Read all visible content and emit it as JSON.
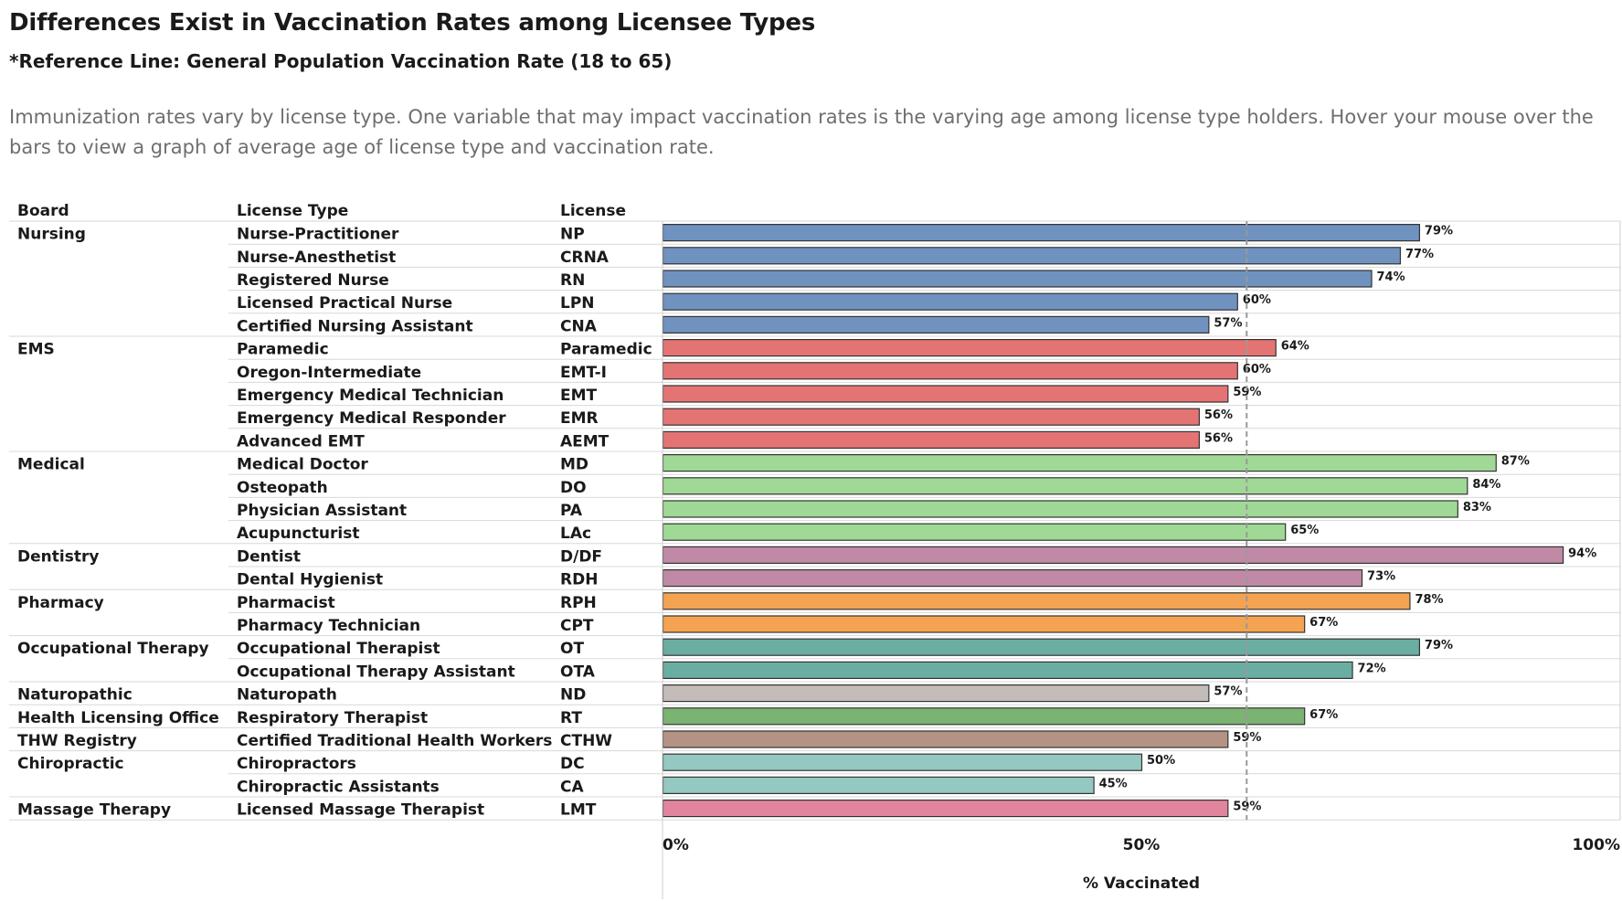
{
  "title": "Differences Exist in Vaccination Rates among Licensee Types",
  "subtitle": "*Reference Line: General Population Vaccination Rate (18 to 65)",
  "description": "Immunization rates vary by license type. One variable that may impact vaccination rates is the varying age among license type holders. Hover your mouse over the bars to view a graph of average age of license type and vaccination rate.",
  "table_headers": {
    "board": "Board",
    "license_type": "License Type",
    "license": "License"
  },
  "colors": {
    "Nursing": "#7092bf",
    "EMS": "#e47474",
    "Medical": "#a0d995",
    "Dentistry": "#c08aa6",
    "Pharmacy": "#f4a352",
    "Occupational Therapy": "#6aaea2",
    "Naturopathic": "#c3bcb8",
    "Health Licensing Office": "#7bb372",
    "THW Registry": "#b59384",
    "Chiropractic": "#94c8c0",
    "Massage Therapy": "#e1859f",
    "reference_line": "#999999"
  },
  "chart_data": {
    "type": "bar",
    "orientation": "horizontal",
    "reference_line": {
      "value": 0.61,
      "label": "General Population Vaccination Rate (18 to 65)"
    },
    "xlabel": "% Vaccinated",
    "xlim": [
      0,
      1
    ],
    "xticks": [
      "0%",
      "50%",
      "100%"
    ],
    "grid": false,
    "rows": [
      {
        "board": "Nursing",
        "license_type": "Nurse-Practitioner",
        "license": "NP",
        "value": 0.79,
        "label": "79%"
      },
      {
        "board": "",
        "license_type": "Nurse-Anesthetist",
        "license": "CRNA",
        "value": 0.77,
        "label": "77%"
      },
      {
        "board": "",
        "license_type": "Registered Nurse",
        "license": "RN",
        "value": 0.74,
        "label": "74%"
      },
      {
        "board": "",
        "license_type": "Licensed Practical Nurse",
        "license": "LPN",
        "value": 0.6,
        "label": "60%"
      },
      {
        "board": "",
        "license_type": "Certified Nursing Assistant",
        "license": "CNA",
        "value": 0.57,
        "label": "57%"
      },
      {
        "board": "EMS",
        "license_type": "Paramedic",
        "license": "Paramedic",
        "value": 0.64,
        "label": "64%"
      },
      {
        "board": "",
        "license_type": "Oregon-Intermediate",
        "license": "EMT-I",
        "value": 0.6,
        "label": "60%"
      },
      {
        "board": "",
        "license_type": "Emergency Medical Technician",
        "license": "EMT",
        "value": 0.59,
        "label": "59%"
      },
      {
        "board": "",
        "license_type": "Emergency Medical Responder",
        "license": "EMR",
        "value": 0.56,
        "label": "56%"
      },
      {
        "board": "",
        "license_type": "Advanced EMT",
        "license": "AEMT",
        "value": 0.56,
        "label": "56%"
      },
      {
        "board": "Medical",
        "license_type": "Medical Doctor",
        "license": "MD",
        "value": 0.87,
        "label": "87%"
      },
      {
        "board": "",
        "license_type": "Osteopath",
        "license": "DO",
        "value": 0.84,
        "label": "84%"
      },
      {
        "board": "",
        "license_type": "Physician Assistant",
        "license": "PA",
        "value": 0.83,
        "label": "83%"
      },
      {
        "board": "",
        "license_type": "Acupuncturist",
        "license": "LAc",
        "value": 0.65,
        "label": "65%"
      },
      {
        "board": "Dentistry",
        "license_type": "Dentist",
        "license": "D/DF",
        "value": 0.94,
        "label": "94%"
      },
      {
        "board": "",
        "license_type": "Dental Hygienist",
        "license": "RDH",
        "value": 0.73,
        "label": "73%"
      },
      {
        "board": "Pharmacy",
        "license_type": "Pharmacist",
        "license": "RPH",
        "value": 0.78,
        "label": "78%"
      },
      {
        "board": "",
        "license_type": "Pharmacy Technician",
        "license": "CPT",
        "value": 0.67,
        "label": "67%"
      },
      {
        "board": "Occupational Therapy",
        "license_type": "Occupational Therapist",
        "license": "OT",
        "value": 0.79,
        "label": "79%"
      },
      {
        "board": "",
        "license_type": "Occupational Therapy Assistant",
        "license": "OTA",
        "value": 0.72,
        "label": "72%"
      },
      {
        "board": "Naturopathic",
        "license_type": "Naturopath",
        "license": "ND",
        "value": 0.57,
        "label": "57%"
      },
      {
        "board": "Health Licensing Office",
        "license_type": "Respiratory Therapist",
        "license": "RT",
        "value": 0.67,
        "label": "67%"
      },
      {
        "board": "THW Registry",
        "license_type": "Certified Traditional Health Workers",
        "license": "CTHW",
        "value": 0.59,
        "label": "59%"
      },
      {
        "board": "Chiropractic",
        "license_type": "Chiropractors",
        "license": "DC",
        "value": 0.5,
        "label": "50%"
      },
      {
        "board": "",
        "license_type": "Chiropractic Assistants",
        "license": "CA",
        "value": 0.45,
        "label": "45%"
      },
      {
        "board": "Massage Therapy",
        "license_type": "Licensed Massage Therapist",
        "license": "LMT",
        "value": 0.59,
        "label": "59%"
      }
    ]
  }
}
